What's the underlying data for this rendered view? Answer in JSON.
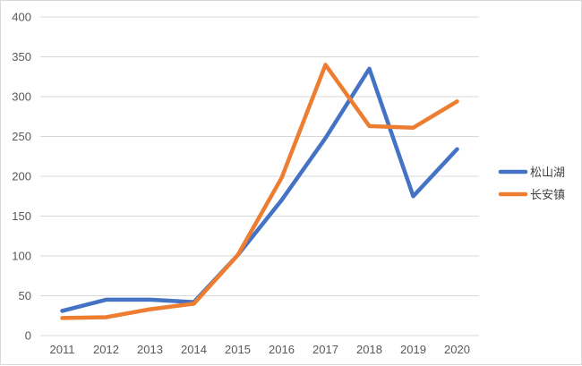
{
  "chart_data": {
    "type": "line",
    "title": "",
    "xlabel": "",
    "ylabel": "",
    "categories": [
      "2011",
      "2012",
      "2013",
      "2014",
      "2015",
      "2016",
      "2017",
      "2018",
      "2019",
      "2020"
    ],
    "ylim": [
      0,
      400
    ],
    "yticks": [
      0,
      50,
      100,
      150,
      200,
      250,
      300,
      350,
      400
    ],
    "grid": true,
    "legend_position": "right",
    "series": [
      {
        "name": "松山湖",
        "color": "#4472c4",
        "values": [
          31,
          45,
          45,
          42,
          101,
          170,
          248,
          335,
          175,
          234
        ]
      },
      {
        "name": "长安镇",
        "color": "#ed7d31",
        "values": [
          22,
          23,
          33,
          40,
          101,
          198,
          340,
          263,
          261,
          294
        ]
      }
    ]
  }
}
